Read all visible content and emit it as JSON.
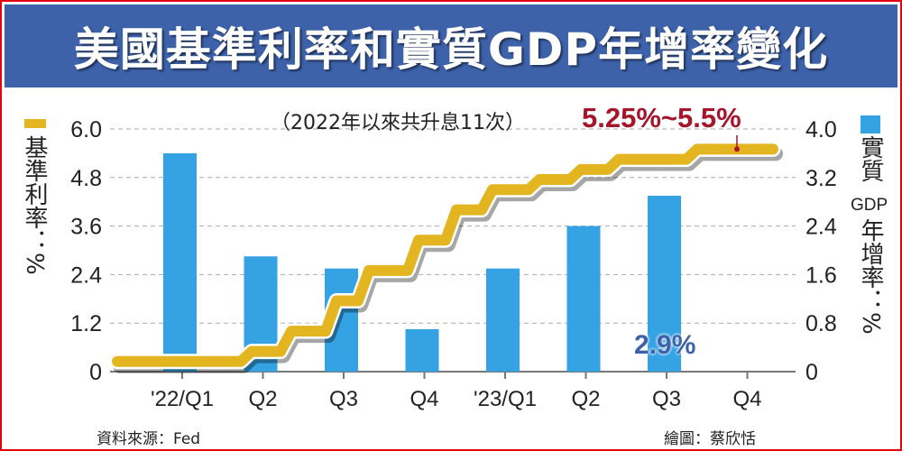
{
  "title": "美國基準利率和實質GDP年增率變化",
  "annotation_note": "（2022年以來共升息11次）",
  "annotation_rate": "5.25%~5.5%",
  "annotation_gdp": "2.9%",
  "source": "資料來源：Fed",
  "credit": "繪圖：蔡欣恬",
  "colors": {
    "bar": "#35a3e3",
    "line": "#e3b520",
    "title_bg": "#3d62aa",
    "rate_text": "#a5152b",
    "gdp_text": "#3d62aa",
    "border": "#e3000f"
  },
  "chart_data": {
    "type": "bar+step-line",
    "title": "美國基準利率和實質GDP年增率變化",
    "categories": [
      "'22/Q1",
      "Q2",
      "Q3",
      "Q4",
      "'23/Q1",
      "Q2",
      "Q3",
      "Q4"
    ],
    "left_axis": {
      "label": "基準利率：%",
      "ticks": [
        "0",
        "1.2",
        "2.4",
        "3.6",
        "4.8",
        "6.0"
      ],
      "range": [
        0,
        6.0
      ]
    },
    "right_axis": {
      "label_top": "實質",
      "label_mid": "GDP",
      "label_bottom": "年增率：%",
      "ticks": [
        "0",
        "0.8",
        "1.6",
        "2.4",
        "3.2",
        "4.0"
      ],
      "range": [
        0,
        4.0
      ]
    },
    "grid": true,
    "series": [
      {
        "name": "實質GDP年增率",
        "type": "bar",
        "axis": "right",
        "values": [
          3.6,
          1.9,
          1.7,
          0.7,
          1.7,
          2.4,
          2.9,
          null
        ]
      },
      {
        "name": "基準利率",
        "type": "step",
        "axis": "left",
        "levels": [
          0.25,
          0.5,
          1.0,
          1.75,
          2.5,
          3.25,
          4.0,
          4.5,
          4.75,
          5.0,
          5.25,
          5.5
        ],
        "hike_months": [
          "2022-03",
          "2022-05",
          "2022-06",
          "2022-07",
          "2022-09",
          "2022-11",
          "2022-12",
          "2023-02",
          "2023-03",
          "2023-05",
          "2023-07"
        ]
      }
    ],
    "legend": "left and right of axes"
  }
}
